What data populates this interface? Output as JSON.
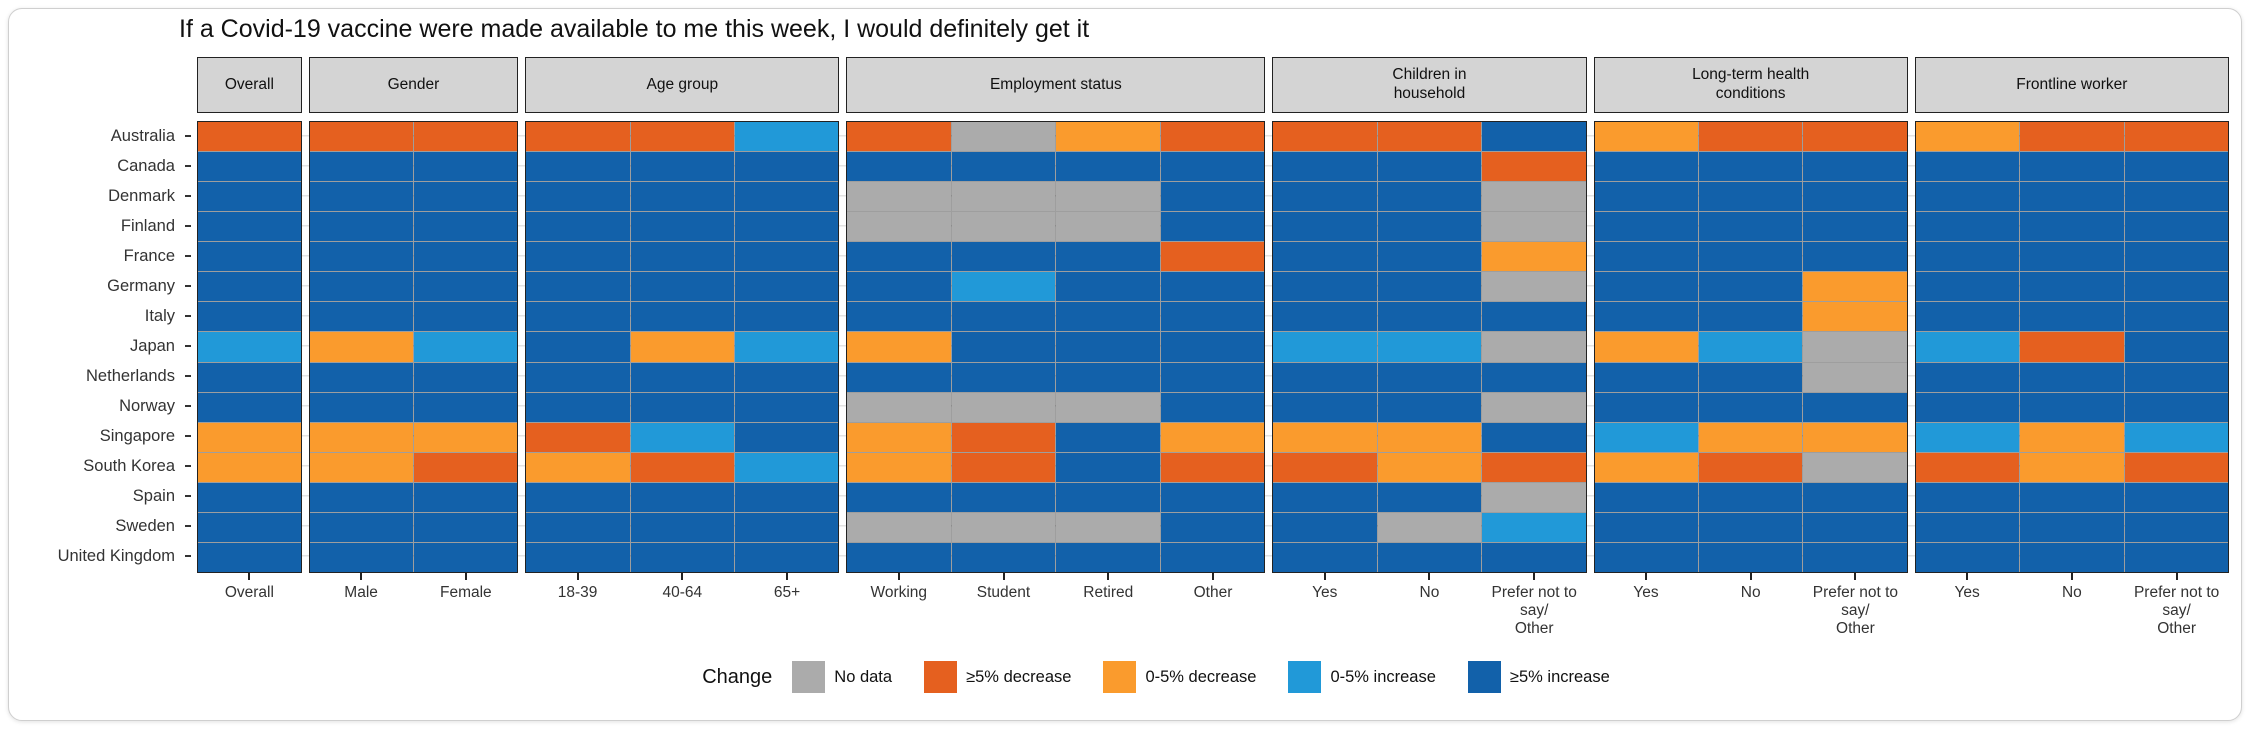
{
  "page": {
    "title": "If a Covid-19 vaccine were made available to me this week, I would definitely get it"
  },
  "chart_data": {
    "type": "heatmap",
    "title": "If a Covid-19 vaccine were made available to me this week, I would definitely get it",
    "legend_title": "Change",
    "legend_position": "bottom",
    "grid": true,
    "legend": [
      {
        "code": "no_data",
        "label": "No data",
        "color": "#ababab"
      },
      {
        "code": "dec5",
        "label": "≥5% decrease",
        "color": "#e5601f"
      },
      {
        "code": "dec0",
        "label": "0-5% decrease",
        "color": "#fa9b2d"
      },
      {
        "code": "inc0",
        "label": "0-5% increase",
        "color": "#2199d8"
      },
      {
        "code": "inc5",
        "label": "≥5% increase",
        "color": "#1261aa"
      }
    ],
    "panels": [
      {
        "label": "Overall",
        "columns": [
          "Overall"
        ]
      },
      {
        "label": "Gender",
        "columns": [
          "Male",
          "Female"
        ]
      },
      {
        "label": "Age group",
        "columns": [
          "18-39",
          "40-64",
          "65+"
        ]
      },
      {
        "label": "Employment status",
        "columns": [
          "Working",
          "Student",
          "Retired",
          "Other"
        ]
      },
      {
        "label": "Children in\nhousehold",
        "columns": [
          "Yes",
          "No",
          "Prefer not to say/\nOther"
        ]
      },
      {
        "label": "Long-term health\nconditions",
        "columns": [
          "Yes",
          "No",
          "Prefer not to say/\nOther"
        ]
      },
      {
        "label": "Frontline worker",
        "columns": [
          "Yes",
          "No",
          "Prefer not to say/\nOther"
        ]
      }
    ],
    "rows": [
      {
        "country": "Australia",
        "cells": [
          [
            "dec5"
          ],
          [
            "dec5",
            "dec5"
          ],
          [
            "dec5",
            "dec5",
            "inc0"
          ],
          [
            "dec5",
            "no_data",
            "dec0",
            "dec5"
          ],
          [
            "dec5",
            "dec5",
            "inc5"
          ],
          [
            "dec0",
            "dec5",
            "dec5"
          ],
          [
            "dec0",
            "dec5",
            "dec5"
          ]
        ]
      },
      {
        "country": "Canada",
        "cells": [
          [
            "inc5"
          ],
          [
            "inc5",
            "inc5"
          ],
          [
            "inc5",
            "inc5",
            "inc5"
          ],
          [
            "inc5",
            "inc5",
            "inc5",
            "inc5"
          ],
          [
            "inc5",
            "inc5",
            "dec5"
          ],
          [
            "inc5",
            "inc5",
            "inc5"
          ],
          [
            "inc5",
            "inc5",
            "inc5"
          ]
        ]
      },
      {
        "country": "Denmark",
        "cells": [
          [
            "inc5"
          ],
          [
            "inc5",
            "inc5"
          ],
          [
            "inc5",
            "inc5",
            "inc5"
          ],
          [
            "no_data",
            "no_data",
            "no_data",
            "inc5"
          ],
          [
            "inc5",
            "inc5",
            "no_data"
          ],
          [
            "inc5",
            "inc5",
            "inc5"
          ],
          [
            "inc5",
            "inc5",
            "inc5"
          ]
        ]
      },
      {
        "country": "Finland",
        "cells": [
          [
            "inc5"
          ],
          [
            "inc5",
            "inc5"
          ],
          [
            "inc5",
            "inc5",
            "inc5"
          ],
          [
            "no_data",
            "no_data",
            "no_data",
            "inc5"
          ],
          [
            "inc5",
            "inc5",
            "no_data"
          ],
          [
            "inc5",
            "inc5",
            "inc5"
          ],
          [
            "inc5",
            "inc5",
            "inc5"
          ]
        ]
      },
      {
        "country": "France",
        "cells": [
          [
            "inc5"
          ],
          [
            "inc5",
            "inc5"
          ],
          [
            "inc5",
            "inc5",
            "inc5"
          ],
          [
            "inc5",
            "inc5",
            "inc5",
            "dec5"
          ],
          [
            "inc5",
            "inc5",
            "dec0"
          ],
          [
            "inc5",
            "inc5",
            "inc5"
          ],
          [
            "inc5",
            "inc5",
            "inc5"
          ]
        ]
      },
      {
        "country": "Germany",
        "cells": [
          [
            "inc5"
          ],
          [
            "inc5",
            "inc5"
          ],
          [
            "inc5",
            "inc5",
            "inc5"
          ],
          [
            "inc5",
            "inc0",
            "inc5",
            "inc5"
          ],
          [
            "inc5",
            "inc5",
            "no_data"
          ],
          [
            "inc5",
            "inc5",
            "dec0"
          ],
          [
            "inc5",
            "inc5",
            "inc5"
          ]
        ]
      },
      {
        "country": "Italy",
        "cells": [
          [
            "inc5"
          ],
          [
            "inc5",
            "inc5"
          ],
          [
            "inc5",
            "inc5",
            "inc5"
          ],
          [
            "inc5",
            "inc5",
            "inc5",
            "inc5"
          ],
          [
            "inc5",
            "inc5",
            "inc5"
          ],
          [
            "inc5",
            "inc5",
            "dec0"
          ],
          [
            "inc5",
            "inc5",
            "inc5"
          ]
        ]
      },
      {
        "country": "Japan",
        "cells": [
          [
            "inc0"
          ],
          [
            "dec0",
            "inc0"
          ],
          [
            "inc5",
            "dec0",
            "inc0"
          ],
          [
            "dec0",
            "inc5",
            "inc5",
            "inc5"
          ],
          [
            "inc0",
            "inc0",
            "no_data"
          ],
          [
            "dec0",
            "inc0",
            "no_data"
          ],
          [
            "inc0",
            "dec5",
            "inc5"
          ]
        ]
      },
      {
        "country": "Netherlands",
        "cells": [
          [
            "inc5"
          ],
          [
            "inc5",
            "inc5"
          ],
          [
            "inc5",
            "inc5",
            "inc5"
          ],
          [
            "inc5",
            "inc5",
            "inc5",
            "inc5"
          ],
          [
            "inc5",
            "inc5",
            "inc5"
          ],
          [
            "inc5",
            "inc5",
            "no_data"
          ],
          [
            "inc5",
            "inc5",
            "inc5"
          ]
        ]
      },
      {
        "country": "Norway",
        "cells": [
          [
            "inc5"
          ],
          [
            "inc5",
            "inc5"
          ],
          [
            "inc5",
            "inc5",
            "inc5"
          ],
          [
            "no_data",
            "no_data",
            "no_data",
            "inc5"
          ],
          [
            "inc5",
            "inc5",
            "no_data"
          ],
          [
            "inc5",
            "inc5",
            "inc5"
          ],
          [
            "inc5",
            "inc5",
            "inc5"
          ]
        ]
      },
      {
        "country": "Singapore",
        "cells": [
          [
            "dec0"
          ],
          [
            "dec0",
            "dec0"
          ],
          [
            "dec5",
            "inc0",
            "inc5"
          ],
          [
            "dec0",
            "dec5",
            "inc5",
            "dec0"
          ],
          [
            "dec0",
            "dec0",
            "inc5"
          ],
          [
            "inc0",
            "dec0",
            "dec0"
          ],
          [
            "inc0",
            "dec0",
            "inc0"
          ]
        ]
      },
      {
        "country": "South Korea",
        "cells": [
          [
            "dec0"
          ],
          [
            "dec0",
            "dec5"
          ],
          [
            "dec0",
            "dec5",
            "inc0"
          ],
          [
            "dec0",
            "dec5",
            "inc5",
            "dec5"
          ],
          [
            "dec5",
            "dec0",
            "dec5"
          ],
          [
            "dec0",
            "dec5",
            "no_data"
          ],
          [
            "dec5",
            "dec0",
            "dec5"
          ]
        ]
      },
      {
        "country": "Spain",
        "cells": [
          [
            "inc5"
          ],
          [
            "inc5",
            "inc5"
          ],
          [
            "inc5",
            "inc5",
            "inc5"
          ],
          [
            "inc5",
            "inc5",
            "inc5",
            "inc5"
          ],
          [
            "inc5",
            "inc5",
            "no_data"
          ],
          [
            "inc5",
            "inc5",
            "inc5"
          ],
          [
            "inc5",
            "inc5",
            "inc5"
          ]
        ]
      },
      {
        "country": "Sweden",
        "cells": [
          [
            "inc5"
          ],
          [
            "inc5",
            "inc5"
          ],
          [
            "inc5",
            "inc5",
            "inc5"
          ],
          [
            "no_data",
            "no_data",
            "no_data",
            "inc5"
          ],
          [
            "inc5",
            "no_data",
            "inc0"
          ],
          [
            "inc5",
            "inc5",
            "inc5"
          ],
          [
            "inc5",
            "inc5",
            "inc5"
          ]
        ]
      },
      {
        "country": "United Kingdom",
        "cells": [
          [
            "inc5"
          ],
          [
            "inc5",
            "inc5"
          ],
          [
            "inc5",
            "inc5",
            "inc5"
          ],
          [
            "inc5",
            "inc5",
            "inc5",
            "inc5"
          ],
          [
            "inc5",
            "inc5",
            "inc5"
          ],
          [
            "inc5",
            "inc5",
            "inc5"
          ],
          [
            "inc5",
            "inc5",
            "inc5"
          ]
        ]
      }
    ],
    "colors": {
      "strip_background": "#d4d4d4",
      "panel_border": "#222222",
      "no_data": "#ababab",
      "dec5": "#e5601f",
      "dec0": "#fa9b2d",
      "inc0": "#2199d8",
      "inc5": "#1261aa"
    }
  }
}
